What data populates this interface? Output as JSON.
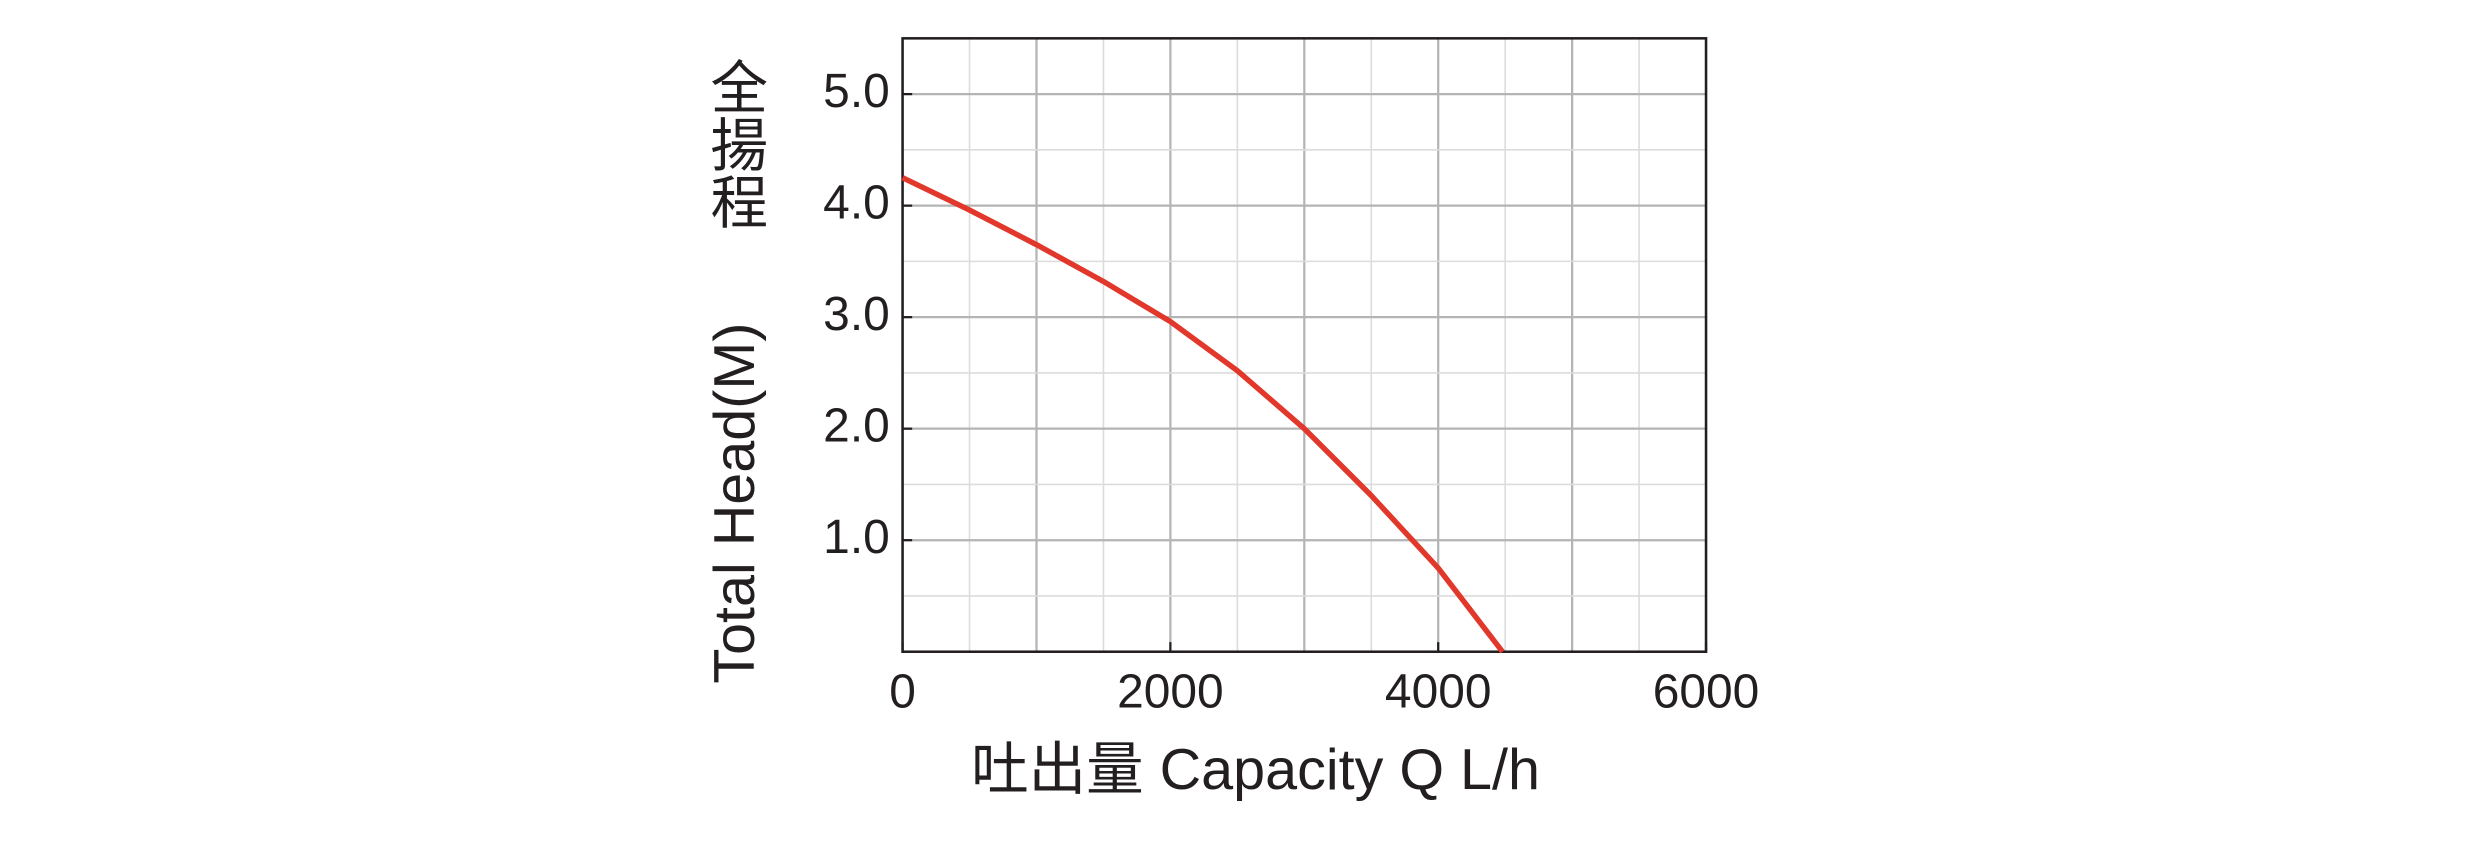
{
  "chart_data": {
    "type": "line",
    "ylabel": "Total Head(M)",
    "ylabel_cjk": "全揚程",
    "xlabel": "吐出量 Capacity Q L/h",
    "x": [
      0,
      500,
      1000,
      1500,
      2000,
      2500,
      3000,
      3500,
      4000,
      4480
    ],
    "series": [
      {
        "name": "Total Head",
        "color": "#e2372b",
        "values": [
          4.25,
          3.96,
          3.65,
          3.32,
          2.96,
          2.52,
          2.0,
          1.4,
          0.75,
          0
        ]
      }
    ],
    "xlim": [
      0,
      6000
    ],
    "ylim": [
      0,
      5.5
    ],
    "xticks": [
      0,
      2000,
      4000,
      6000
    ],
    "yticks": [
      {
        "value": 1,
        "label": "1.0"
      },
      {
        "value": 2,
        "label": "2.0"
      },
      {
        "value": 3,
        "label": "3.0"
      },
      {
        "value": 4,
        "label": "4.0"
      },
      {
        "value": 5,
        "label": "5.0"
      }
    ],
    "xgrid": {
      "major": 1000,
      "minor": 500
    },
    "ygrid": {
      "major": 1,
      "minor": 0.5
    }
  }
}
